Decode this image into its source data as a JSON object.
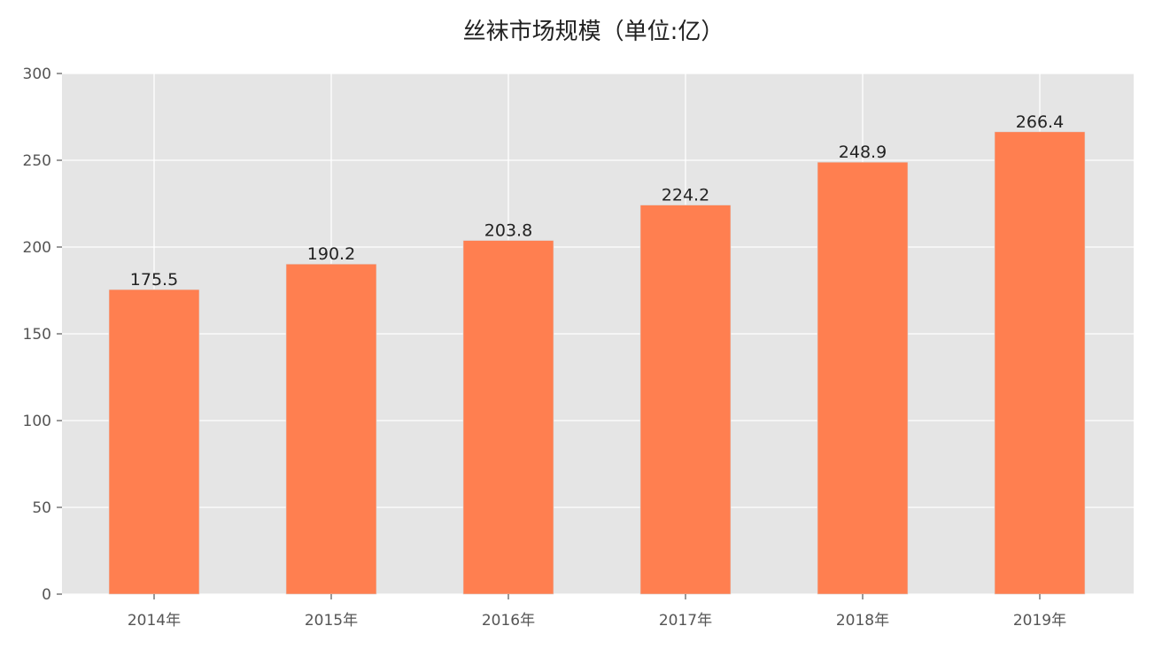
{
  "chart_data": {
    "type": "bar",
    "title": "丝袜市场规模（单位:亿）",
    "categories": [
      "2014年",
      "2015年",
      "2016年",
      "2017年",
      "2018年",
      "2019年"
    ],
    "values": [
      175.5,
      190.2,
      203.8,
      224.2,
      248.9,
      266.4
    ],
    "data_labels": [
      "175.5",
      "190.2",
      "203.8",
      "224.2",
      "248.9",
      "266.4"
    ],
    "ylim": [
      0,
      300
    ],
    "yticks": [
      0,
      50,
      100,
      150,
      200,
      250,
      300
    ],
    "grid": true,
    "colors": {
      "bar": "#FF7F50",
      "background": "#E5E5E5",
      "grid": "#FFFFFF"
    }
  }
}
